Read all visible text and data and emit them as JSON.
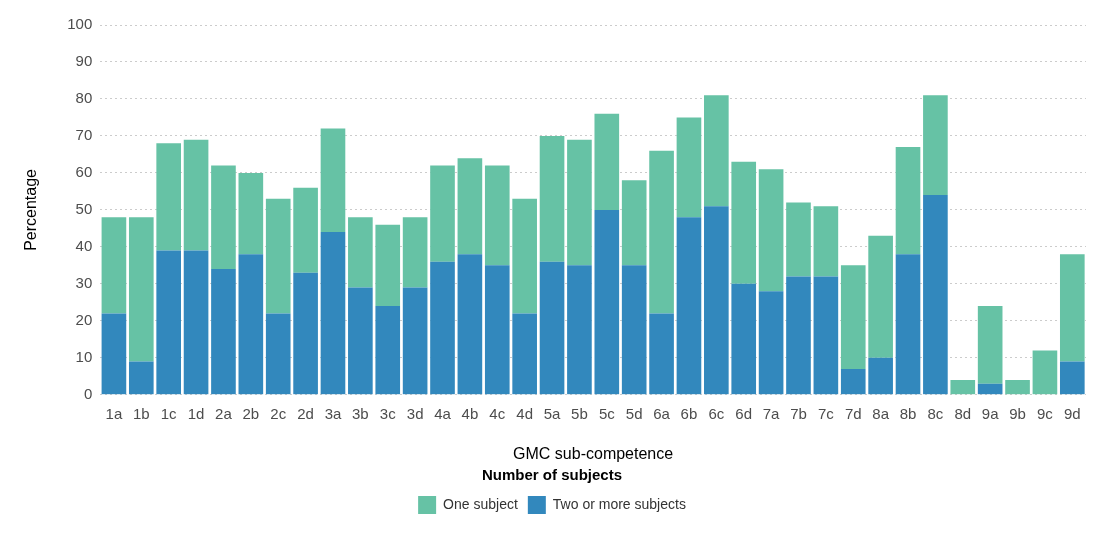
{
  "chart_data": {
    "type": "bar",
    "stacked": true,
    "xlabel": "GMC sub-competence",
    "ylabel": "Percentage",
    "legend_title": "Number of subjects",
    "categories": [
      "1a",
      "1b",
      "1c",
      "1d",
      "2a",
      "2b",
      "2c",
      "2d",
      "3a",
      "3b",
      "3c",
      "3d",
      "4a",
      "4b",
      "4c",
      "4d",
      "5a",
      "5b",
      "5c",
      "5d",
      "6a",
      "6b",
      "6c",
      "6d",
      "7a",
      "7b",
      "7c",
      "7d",
      "8a",
      "8b",
      "8c",
      "8d",
      "9a",
      "9b",
      "9c",
      "9d"
    ],
    "series": [
      {
        "name": "Two or more subjects",
        "color": "#3288bd",
        "values": [
          22,
          9,
          39,
          39,
          34,
          38,
          22,
          33,
          44,
          29,
          24,
          29,
          36,
          38,
          35,
          22,
          36,
          35,
          50,
          35,
          22,
          48,
          51,
          30,
          28,
          32,
          32,
          7,
          10,
          38,
          54,
          0,
          3,
          0,
          0,
          9
        ]
      },
      {
        "name": "One subject",
        "color": "#66c2a5",
        "values": [
          26,
          39,
          29,
          30,
          28,
          22,
          31,
          23,
          28,
          19,
          22,
          19,
          26,
          26,
          27,
          31,
          34,
          34,
          26,
          23,
          44,
          27,
          30,
          33,
          33,
          20,
          19,
          28,
          33,
          29,
          27,
          4,
          21,
          4,
          12,
          29
        ]
      }
    ],
    "ylim": [
      0,
      100
    ],
    "yticks": [
      0,
      10,
      20,
      30,
      40,
      50,
      60,
      70,
      80,
      90,
      100
    ],
    "grid": "y",
    "legend": "bottom"
  }
}
